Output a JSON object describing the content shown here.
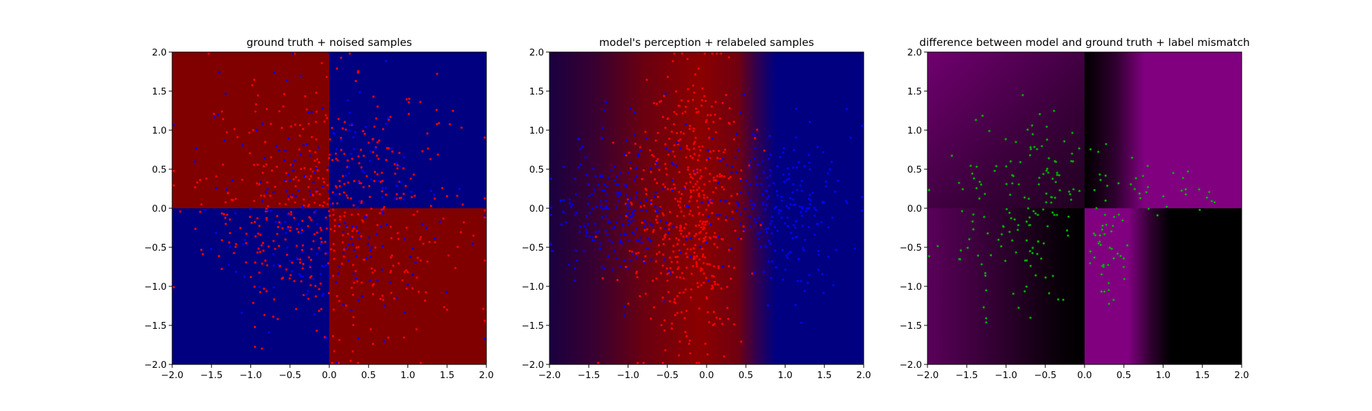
{
  "figure": {
    "background": "#ffffff",
    "colors": {
      "dark_red": "#800000",
      "navy": "#000080",
      "red_points": "#ff0000",
      "blue_points": "#0000ff",
      "green_points": "#008000",
      "purple": "#800080",
      "black": "#000000"
    }
  },
  "chart_data": [
    {
      "type": "scatter",
      "title": "ground truth + noised samples",
      "background": "image",
      "background_description": "checkerboard quadrants: dark red when x*y>0, navy when x*y<0",
      "xlim": [
        -2.0,
        2.0
      ],
      "ylim": [
        -2.0,
        2.0
      ],
      "xticks": [
        "−2.0",
        "−1.5",
        "−1.0",
        "−0.5",
        "0.0",
        "0.5",
        "1.0",
        "1.5",
        "2.0"
      ],
      "yticks": [
        "−2.0",
        "−1.5",
        "−1.0",
        "−0.5",
        "0.0",
        "0.5",
        "1.0",
        "1.5",
        "2.0"
      ],
      "grid": false,
      "series": [
        {
          "color": "red",
          "approx_count": 520
        },
        {
          "color": "blue",
          "approx_count": 230
        }
      ]
    },
    {
      "type": "scatter",
      "title": "model's perception + relabeled samples",
      "background": "image",
      "background_description": "vertical band of red centered near x=0 fading to navy beyond |x|≈0.6",
      "xlim": [
        -2.0,
        2.0
      ],
      "ylim": [
        -2.0,
        2.0
      ],
      "xticks": [
        "−2.0",
        "−1.5",
        "−1.0",
        "−0.5",
        "0.0",
        "0.5",
        "1.0",
        "1.5",
        "2.0"
      ],
      "yticks": [
        "−2.0",
        "−1.5",
        "−1.0",
        "−0.5",
        "0.0",
        "0.5",
        "1.0",
        "1.5",
        "2.0"
      ],
      "grid": false,
      "series": [
        {
          "color": "red",
          "approx_count": 480
        },
        {
          "color": "blue",
          "approx_count": 480
        }
      ]
    },
    {
      "type": "scatter",
      "title": "difference between model and ground truth + label mismatch",
      "background": "image",
      "background_description": "purple where the model disagrees with the ground truth, black where it agrees",
      "xlim": [
        -2.0,
        2.0
      ],
      "ylim": [
        -2.0,
        2.0
      ],
      "xticks": [
        "−2.0",
        "−1.5",
        "−1.0",
        "−0.5",
        "0.0",
        "0.5",
        "1.0",
        "1.5",
        "2.0"
      ],
      "yticks": [
        "−2.0",
        "−1.5",
        "−1.0",
        "−0.5",
        "0.0",
        "0.5",
        "1.0",
        "1.5",
        "2.0"
      ],
      "grid": false,
      "series": [
        {
          "color": "green",
          "approx_count": 230
        }
      ]
    }
  ]
}
